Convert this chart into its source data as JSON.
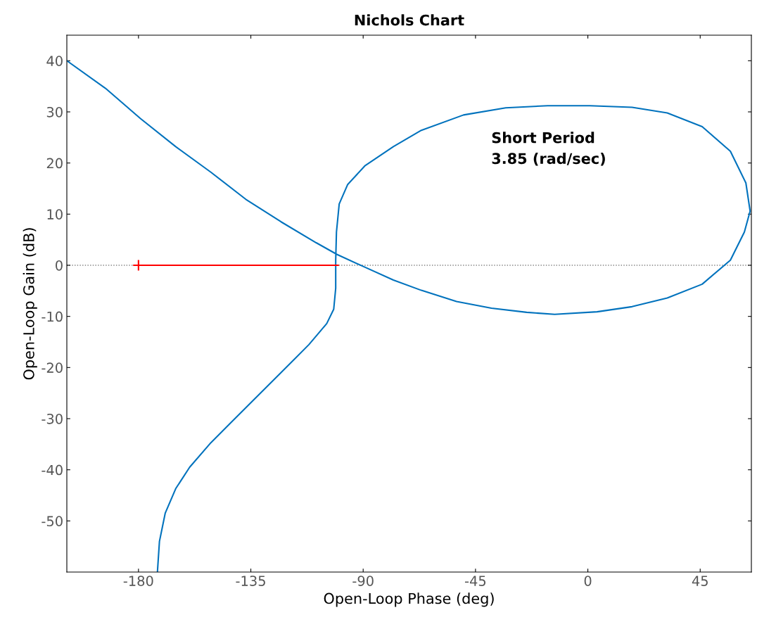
{
  "chart_data": {
    "type": "line",
    "title": "Nichols Chart",
    "xlabel": "Open-Loop Phase (deg)",
    "ylabel": "Open-Loop Gain (dB)",
    "xlim": [
      -208.7,
      65.5
    ],
    "ylim": [
      -60,
      45
    ],
    "xticks": [
      -180,
      -135,
      -90,
      -45,
      0,
      45
    ],
    "yticks": [
      -50,
      -40,
      -30,
      -20,
      -10,
      0,
      10,
      20,
      30,
      40
    ],
    "grid": false,
    "legend": false,
    "marker": "none",
    "line_style": "solid",
    "ref_lines": [
      {
        "axis": "y",
        "value": 0,
        "color": "#808080",
        "line_style": "dotted"
      }
    ],
    "annotations": [
      "Short Period\n3.85 (rad/sec)"
    ],
    "series": [
      {
        "color": "#0072bd",
        "x": [
          -208.7,
          -193.2,
          -179.2,
          -165.1,
          -151.0,
          -137.0,
          -122.9,
          -108.8,
          -100.4,
          -89.2,
          -77.9,
          -66.7,
          -52.6,
          -38.6,
          -24.5,
          -13.3,
          3.7,
          17.7,
          31.8,
          45.8,
          57.1,
          62.7,
          65.0,
          63.3,
          57.1,
          45.8,
          31.8,
          17.7,
          0.8,
          -16.1,
          -32.9,
          -49.8,
          -66.7,
          -77.9,
          -89.2,
          -96.2,
          -99.6,
          -100.7,
          -101.0,
          -101.0,
          -101.8,
          -104.6,
          -111.7,
          -122.9,
          -134.2,
          -142.6,
          -151.0,
          -159.5,
          -165.1,
          -169.3,
          -171.6,
          -172.4
        ],
        "values": [
          40,
          34.6,
          28.7,
          23.2,
          18.2,
          12.9,
          8.5,
          4.4,
          2.1,
          -0.4,
          -2.9,
          -4.9,
          -7.1,
          -8.4,
          -9.2,
          -9.6,
          -9.1,
          -8.1,
          -6.4,
          -3.7,
          1.0,
          6.5,
          10.6,
          16.1,
          22.3,
          27.1,
          29.8,
          30.9,
          31.2,
          31.2,
          30.8,
          29.4,
          26.4,
          23.2,
          19.5,
          15.8,
          12.0,
          6.5,
          1.0,
          -4.5,
          -8.6,
          -11.4,
          -15.5,
          -21.0,
          -26.5,
          -30.6,
          -34.7,
          -39.5,
          -43.7,
          -48.5,
          -54.0,
          -59.9
        ]
      },
      {
        "color": "#ff0000",
        "x": [
          -180,
          -100
        ],
        "values": [
          0,
          0
        ]
      },
      {
        "type": "scatter",
        "color": "#ff0000",
        "marker": "cross",
        "x": [
          -180
        ],
        "values": [
          0
        ]
      }
    ]
  }
}
